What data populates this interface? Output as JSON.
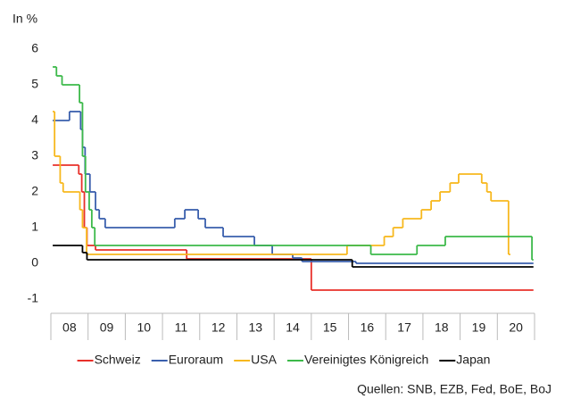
{
  "chart_data": {
    "type": "step-line",
    "y_label": "In %",
    "source": "Quellen: SNB, EZB, Fed, BoE, BoJ",
    "xlim": [
      2008,
      2021
    ],
    "xticks": [
      {
        "value": 2008.5,
        "label": "08"
      },
      {
        "value": 2009.5,
        "label": "09"
      },
      {
        "value": 2010.5,
        "label": "10"
      },
      {
        "value": 2011.5,
        "label": "11"
      },
      {
        "value": 2012.5,
        "label": "12"
      },
      {
        "value": 2013.5,
        "label": "13"
      },
      {
        "value": 2014.5,
        "label": "14"
      },
      {
        "value": 2015.5,
        "label": "15"
      },
      {
        "value": 2016.5,
        "label": "16"
      },
      {
        "value": 2017.5,
        "label": "17"
      },
      {
        "value": 2018.5,
        "label": "18"
      },
      {
        "value": 2019.5,
        "label": "19"
      },
      {
        "value": 2020.5,
        "label": "20"
      }
    ],
    "ylim": [
      -1.4,
      6
    ],
    "yticks": [
      -1,
      0,
      1,
      2,
      3,
      4,
      5,
      6
    ],
    "grid": false,
    "legend": "bottom",
    "series": [
      {
        "name": "Schweiz",
        "color": "#e8302a",
        "x": [
          2008.05,
          2008.75,
          2008.83,
          2008.9,
          2008.97,
          2009.2,
          2011.65,
          2015.0,
          2020.97
        ],
        "values": [
          2.75,
          2.5,
          2.0,
          1.0,
          0.5,
          0.375,
          0.125,
          -0.75,
          -0.75
        ]
      },
      {
        "name": "Euroraum",
        "color": "#3a5fad",
        "x": [
          2008.05,
          2008.5,
          2008.8,
          2008.85,
          2008.92,
          2009.05,
          2009.2,
          2009.3,
          2009.46,
          2011.33,
          2011.6,
          2011.96,
          2012.15,
          2012.63,
          2013.47,
          2013.95,
          2014.5,
          2014.75,
          2016.2,
          2020.97
        ],
        "values": [
          4.0,
          4.25,
          3.75,
          3.25,
          2.5,
          2.0,
          1.5,
          1.25,
          1.0,
          1.25,
          1.5,
          1.25,
          1.0,
          0.75,
          0.5,
          0.25,
          0.15,
          0.05,
          0.0,
          0.0
        ]
      },
      {
        "name": "USA",
        "color": "#f7b81e",
        "x": [
          2008.05,
          2008.1,
          2008.25,
          2008.33,
          2008.78,
          2008.85,
          2008.96,
          2015.96,
          2016.96,
          2017.2,
          2017.46,
          2017.96,
          2018.22,
          2018.46,
          2018.73,
          2018.96,
          2019.58,
          2019.72,
          2019.83,
          2020.3,
          2020.35
        ],
        "values": [
          4.25,
          3.0,
          2.25,
          2.0,
          1.5,
          1.0,
          0.25,
          0.5,
          0.75,
          1.0,
          1.25,
          1.5,
          1.75,
          2.0,
          2.25,
          2.5,
          2.25,
          2.0,
          1.75,
          0.25,
          0.25
        ]
      },
      {
        "name": "Vereinigtes Königreich",
        "color": "#3cb94a",
        "x": [
          2008.05,
          2008.15,
          2008.3,
          2008.77,
          2008.85,
          2008.93,
          2009.03,
          2009.1,
          2009.18,
          2016.6,
          2017.84,
          2018.6,
          2020.93,
          2020.97
        ],
        "values": [
          5.5,
          5.25,
          5.0,
          4.5,
          3.0,
          2.0,
          1.5,
          1.0,
          0.5,
          0.25,
          0.5,
          0.75,
          0.1,
          0.1
        ]
      },
      {
        "name": "Japan",
        "color": "#000000",
        "x": [
          2008.05,
          2008.85,
          2008.97,
          2016.1,
          2020.97
        ],
        "values": [
          0.5,
          0.3,
          0.1,
          -0.1,
          -0.1
        ]
      }
    ]
  }
}
